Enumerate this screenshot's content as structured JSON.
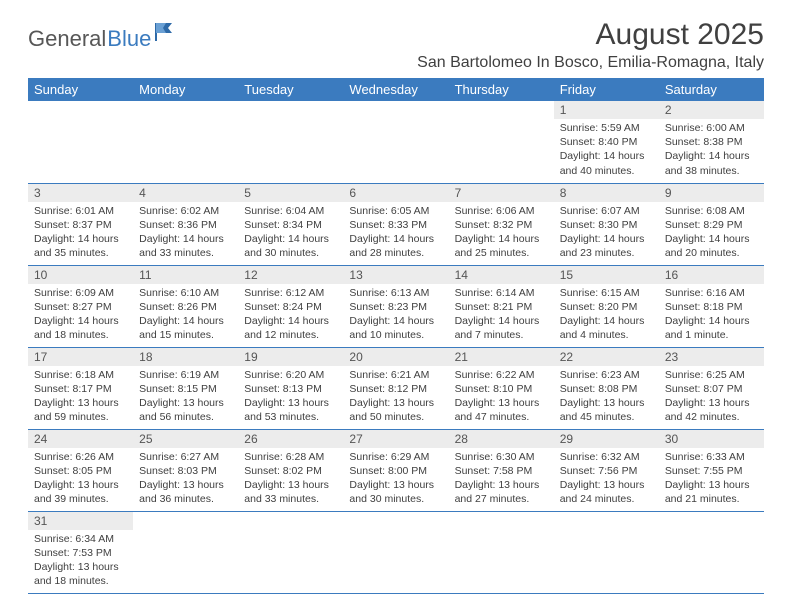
{
  "logo": {
    "text1": "General",
    "text2": "Blue"
  },
  "title": "August 2025",
  "location": "San Bartolomeo In Bosco, Emilia-Romagna, Italy",
  "colors": {
    "header_bg": "#3b7bbf",
    "header_fg": "#ffffff",
    "daynum_bg": "#ececec",
    "row_border": "#3b7bbf",
    "text": "#404040"
  },
  "weekdays": [
    "Sunday",
    "Monday",
    "Tuesday",
    "Wednesday",
    "Thursday",
    "Friday",
    "Saturday"
  ],
  "weeks": [
    [
      null,
      null,
      null,
      null,
      null,
      {
        "n": "1",
        "sr": "Sunrise: 5:59 AM",
        "ss": "Sunset: 8:40 PM",
        "dl": "Daylight: 14 hours and 40 minutes."
      },
      {
        "n": "2",
        "sr": "Sunrise: 6:00 AM",
        "ss": "Sunset: 8:38 PM",
        "dl": "Daylight: 14 hours and 38 minutes."
      }
    ],
    [
      {
        "n": "3",
        "sr": "Sunrise: 6:01 AM",
        "ss": "Sunset: 8:37 PM",
        "dl": "Daylight: 14 hours and 35 minutes."
      },
      {
        "n": "4",
        "sr": "Sunrise: 6:02 AM",
        "ss": "Sunset: 8:36 PM",
        "dl": "Daylight: 14 hours and 33 minutes."
      },
      {
        "n": "5",
        "sr": "Sunrise: 6:04 AM",
        "ss": "Sunset: 8:34 PM",
        "dl": "Daylight: 14 hours and 30 minutes."
      },
      {
        "n": "6",
        "sr": "Sunrise: 6:05 AM",
        "ss": "Sunset: 8:33 PM",
        "dl": "Daylight: 14 hours and 28 minutes."
      },
      {
        "n": "7",
        "sr": "Sunrise: 6:06 AM",
        "ss": "Sunset: 8:32 PM",
        "dl": "Daylight: 14 hours and 25 minutes."
      },
      {
        "n": "8",
        "sr": "Sunrise: 6:07 AM",
        "ss": "Sunset: 8:30 PM",
        "dl": "Daylight: 14 hours and 23 minutes."
      },
      {
        "n": "9",
        "sr": "Sunrise: 6:08 AM",
        "ss": "Sunset: 8:29 PM",
        "dl": "Daylight: 14 hours and 20 minutes."
      }
    ],
    [
      {
        "n": "10",
        "sr": "Sunrise: 6:09 AM",
        "ss": "Sunset: 8:27 PM",
        "dl": "Daylight: 14 hours and 18 minutes."
      },
      {
        "n": "11",
        "sr": "Sunrise: 6:10 AM",
        "ss": "Sunset: 8:26 PM",
        "dl": "Daylight: 14 hours and 15 minutes."
      },
      {
        "n": "12",
        "sr": "Sunrise: 6:12 AM",
        "ss": "Sunset: 8:24 PM",
        "dl": "Daylight: 14 hours and 12 minutes."
      },
      {
        "n": "13",
        "sr": "Sunrise: 6:13 AM",
        "ss": "Sunset: 8:23 PM",
        "dl": "Daylight: 14 hours and 10 minutes."
      },
      {
        "n": "14",
        "sr": "Sunrise: 6:14 AM",
        "ss": "Sunset: 8:21 PM",
        "dl": "Daylight: 14 hours and 7 minutes."
      },
      {
        "n": "15",
        "sr": "Sunrise: 6:15 AM",
        "ss": "Sunset: 8:20 PM",
        "dl": "Daylight: 14 hours and 4 minutes."
      },
      {
        "n": "16",
        "sr": "Sunrise: 6:16 AM",
        "ss": "Sunset: 8:18 PM",
        "dl": "Daylight: 14 hours and 1 minute."
      }
    ],
    [
      {
        "n": "17",
        "sr": "Sunrise: 6:18 AM",
        "ss": "Sunset: 8:17 PM",
        "dl": "Daylight: 13 hours and 59 minutes."
      },
      {
        "n": "18",
        "sr": "Sunrise: 6:19 AM",
        "ss": "Sunset: 8:15 PM",
        "dl": "Daylight: 13 hours and 56 minutes."
      },
      {
        "n": "19",
        "sr": "Sunrise: 6:20 AM",
        "ss": "Sunset: 8:13 PM",
        "dl": "Daylight: 13 hours and 53 minutes."
      },
      {
        "n": "20",
        "sr": "Sunrise: 6:21 AM",
        "ss": "Sunset: 8:12 PM",
        "dl": "Daylight: 13 hours and 50 minutes."
      },
      {
        "n": "21",
        "sr": "Sunrise: 6:22 AM",
        "ss": "Sunset: 8:10 PM",
        "dl": "Daylight: 13 hours and 47 minutes."
      },
      {
        "n": "22",
        "sr": "Sunrise: 6:23 AM",
        "ss": "Sunset: 8:08 PM",
        "dl": "Daylight: 13 hours and 45 minutes."
      },
      {
        "n": "23",
        "sr": "Sunrise: 6:25 AM",
        "ss": "Sunset: 8:07 PM",
        "dl": "Daylight: 13 hours and 42 minutes."
      }
    ],
    [
      {
        "n": "24",
        "sr": "Sunrise: 6:26 AM",
        "ss": "Sunset: 8:05 PM",
        "dl": "Daylight: 13 hours and 39 minutes."
      },
      {
        "n": "25",
        "sr": "Sunrise: 6:27 AM",
        "ss": "Sunset: 8:03 PM",
        "dl": "Daylight: 13 hours and 36 minutes."
      },
      {
        "n": "26",
        "sr": "Sunrise: 6:28 AM",
        "ss": "Sunset: 8:02 PM",
        "dl": "Daylight: 13 hours and 33 minutes."
      },
      {
        "n": "27",
        "sr": "Sunrise: 6:29 AM",
        "ss": "Sunset: 8:00 PM",
        "dl": "Daylight: 13 hours and 30 minutes."
      },
      {
        "n": "28",
        "sr": "Sunrise: 6:30 AM",
        "ss": "Sunset: 7:58 PM",
        "dl": "Daylight: 13 hours and 27 minutes."
      },
      {
        "n": "29",
        "sr": "Sunrise: 6:32 AM",
        "ss": "Sunset: 7:56 PM",
        "dl": "Daylight: 13 hours and 24 minutes."
      },
      {
        "n": "30",
        "sr": "Sunrise: 6:33 AM",
        "ss": "Sunset: 7:55 PM",
        "dl": "Daylight: 13 hours and 21 minutes."
      }
    ],
    [
      {
        "n": "31",
        "sr": "Sunrise: 6:34 AM",
        "ss": "Sunset: 7:53 PM",
        "dl": "Daylight: 13 hours and 18 minutes."
      },
      null,
      null,
      null,
      null,
      null,
      null
    ]
  ]
}
